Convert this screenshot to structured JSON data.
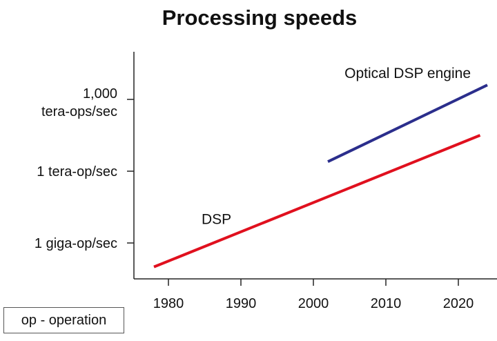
{
  "chart_data": {
    "type": "line",
    "title": "Processing speeds",
    "xlabel": "",
    "ylabel": "",
    "y_scale": "log",
    "y_unit": "operations per second",
    "xlim": [
      1975,
      2025
    ],
    "ylim": [
      1000000,
      100000000000000000
    ],
    "x_ticks": [
      1980,
      1990,
      2000,
      2010,
      2020
    ],
    "y_ticks": [
      {
        "value": 1000000000,
        "label": "1 giga-op/sec"
      },
      {
        "value": 1000000000000,
        "label": "1 tera-op/sec"
      },
      {
        "value": 1000000000000000,
        "label": "1,000 tera-ops/sec"
      }
    ],
    "series": [
      {
        "name": "DSP",
        "color": "#e0101e",
        "points": [
          {
            "x": 1978,
            "y": 100000000
          },
          {
            "x": 2023,
            "y": 31600000000000
          }
        ]
      },
      {
        "name": "Optical DSP engine",
        "color": "#2b2e8c",
        "points": [
          {
            "x": 2002,
            "y": 2500000000000
          },
          {
            "x": 2024,
            "y": 3980000000000000
          }
        ]
      }
    ],
    "grid": false,
    "legend": "none"
  },
  "footnote": "op - operation"
}
